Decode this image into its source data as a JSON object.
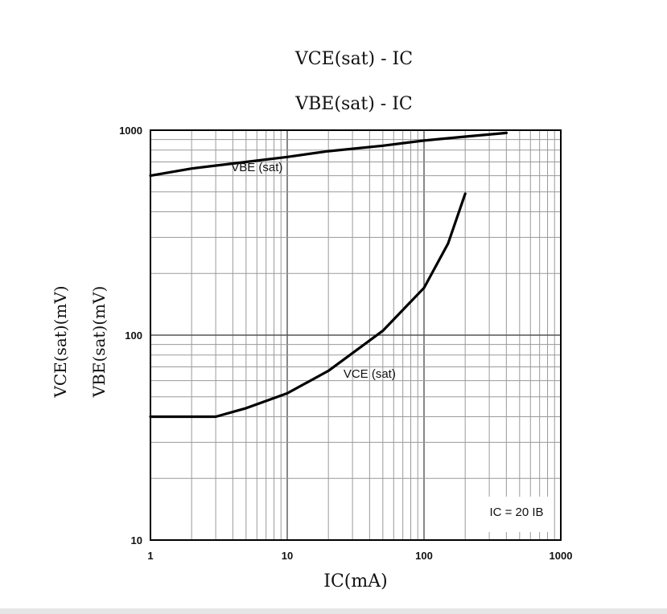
{
  "chart_data": {
    "type": "line",
    "title_lines": [
      "VCE(sat) - IC",
      "VBE(sat) - IC"
    ],
    "xlabel": "IC(mA)",
    "ylabel_lines": [
      "VCE(sat)(mV)",
      "VBE(sat)(mV)"
    ],
    "x_scale": "log",
    "y_scale": "log",
    "xlim": [
      1,
      1000
    ],
    "ylim": [
      10,
      1000
    ],
    "grid": true,
    "x_ticks": [
      1,
      10,
      100,
      1000
    ],
    "x_tick_labels": [
      "1",
      "10",
      "100",
      "1000"
    ],
    "y_ticks": [
      10,
      100,
      1000
    ],
    "y_tick_labels": [
      "10",
      "100",
      "1000"
    ],
    "annotation": "IC = 20 IB",
    "series": [
      {
        "name": "VBE (sat)",
        "x": [
          1,
          2,
          5,
          10,
          20,
          50,
          100,
          200,
          400
        ],
        "y": [
          600,
          650,
          700,
          740,
          790,
          840,
          890,
          930,
          970
        ]
      },
      {
        "name": "VCE (sat)",
        "x": [
          1,
          2,
          3,
          5,
          10,
          20,
          50,
          100,
          150,
          200
        ],
        "y": [
          40,
          40,
          40,
          44,
          52,
          67,
          105,
          170,
          280,
          490
        ]
      }
    ]
  }
}
